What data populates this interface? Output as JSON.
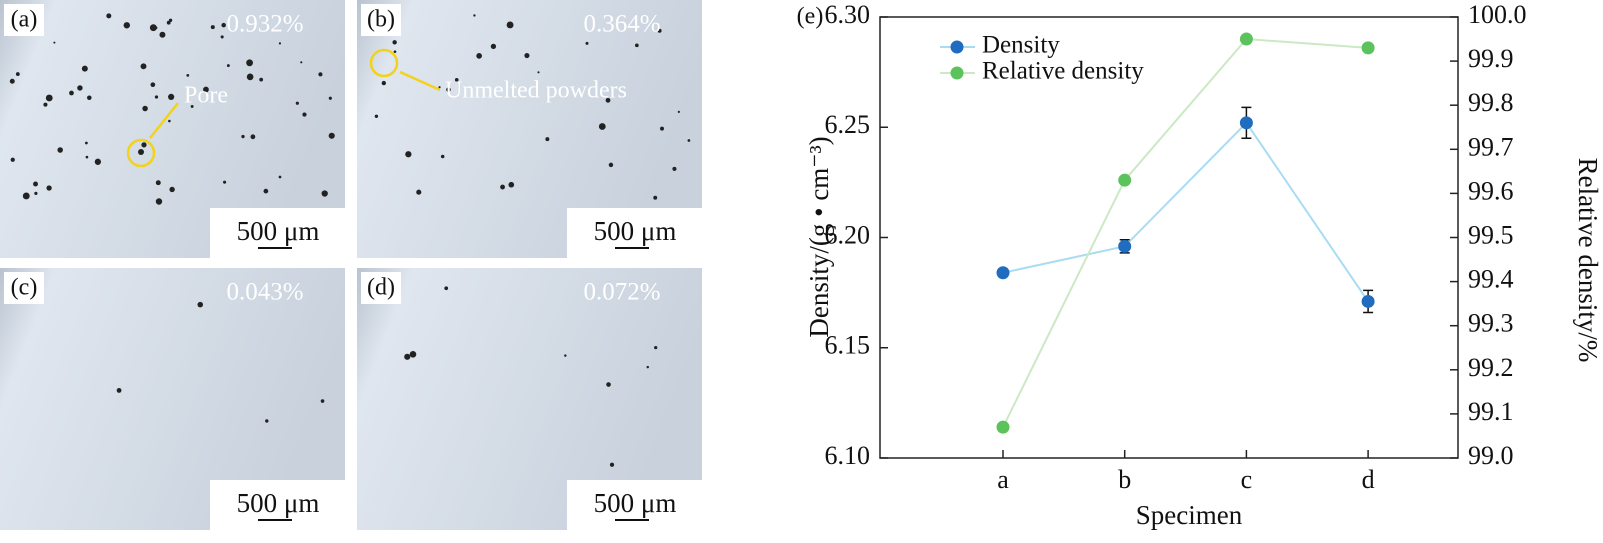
{
  "panels": [
    {
      "label": "(a)",
      "porosity": "0.932%",
      "scale_bar": "500 μm",
      "annotation": "Pore"
    },
    {
      "label": "(b)",
      "porosity": "0.364%",
      "scale_bar": "500 μm",
      "annotation": "Unmelted powders"
    },
    {
      "label": "(c)",
      "porosity": "0.043%",
      "scale_bar": "500 μm"
    },
    {
      "label": "(d)",
      "porosity": "0.072%",
      "scale_bar": "500 μm"
    }
  ],
  "chart_data": {
    "type": "line",
    "panel_label": "(e)",
    "x_label": "Specimen",
    "y_label": "Density/(g • cm⁻³)",
    "y2_label": "Relative density/%",
    "categories": [
      "a",
      "b",
      "c",
      "d"
    ],
    "series": [
      {
        "name": "Density",
        "color": "#1f6cc0",
        "line_color": "#a9dcf2",
        "values": [
          6.184,
          6.196,
          6.252,
          6.171
        ],
        "errors": [
          0.001,
          0.003,
          0.007,
          0.005
        ]
      },
      {
        "name": "Relative density",
        "color": "#5cc35c",
        "line_color": "#cbe9c4",
        "axis": "y2",
        "values": [
          99.07,
          99.63,
          99.95,
          99.93
        ]
      }
    ],
    "ylim": [
      6.1,
      6.3
    ],
    "yticks": [
      {
        "value": 6.1,
        "label": "6.10"
      },
      6.15,
      {
        "value": 6.2,
        "label": "6.20"
      },
      6.25,
      {
        "value": 6.3,
        "label": "6.30"
      }
    ],
    "y2lim": [
      99.0,
      100.0
    ],
    "y2ticks": [
      {
        "value": 99.0,
        "label": "99.0"
      },
      99.1,
      99.2,
      99.3,
      99.4,
      99.5,
      99.6,
      99.7,
      99.8,
      99.9,
      {
        "value": 100.0,
        "label": "100.0"
      }
    ],
    "legend": "upper left"
  }
}
